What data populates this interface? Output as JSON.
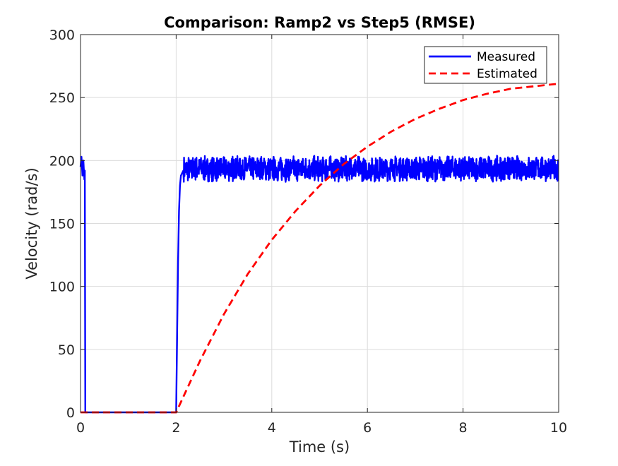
{
  "chart_data": {
    "type": "line",
    "title": "Comparison: Ramp2 vs Step5 (RMSE)",
    "xlabel": "Time (s)",
    "ylabel": "Velocity (rad/s)",
    "xlim": [
      0,
      10
    ],
    "ylim": [
      0,
      300
    ],
    "xticks": [
      0,
      2,
      4,
      6,
      8,
      10
    ],
    "yticks": [
      0,
      50,
      100,
      150,
      200,
      250,
      300
    ],
    "xtick_labels": [
      "0",
      "2",
      "4",
      "6",
      "8",
      "10"
    ],
    "ytick_labels": [
      "0",
      "50",
      "100",
      "150",
      "200",
      "250",
      "300"
    ],
    "grid": true,
    "legend_position": "top-right",
    "series": [
      {
        "name": "Measured",
        "color": "#0000ff",
        "line_style": "solid",
        "noise_band": [
          183,
          204
        ],
        "x": [
          0,
          0.02,
          0.04,
          0.06,
          0.08,
          0.09,
          0.1,
          0.11,
          1.98,
          2.0,
          2.02,
          2.04,
          2.06,
          2.08,
          2.1,
          2.15,
          3,
          4,
          5,
          6,
          7,
          8,
          9,
          10
        ],
        "y": [
          195,
          203,
          188,
          200,
          185,
          192,
          0,
          0,
          0,
          0,
          60,
          120,
          160,
          180,
          188,
          192,
          193,
          193,
          193,
          193,
          193,
          193,
          193,
          193
        ]
      },
      {
        "name": "Estimated",
        "color": "#ff0000",
        "line_style": "dashed",
        "x": [
          0,
          2,
          2.5,
          3,
          3.5,
          4,
          4.5,
          5,
          5.5,
          6,
          6.5,
          7,
          7.5,
          8,
          8.5,
          9,
          9.5,
          10
        ],
        "y": [
          0,
          0,
          41,
          78,
          110,
          137,
          160,
          180,
          197,
          211,
          223,
          233,
          241,
          248,
          253,
          257,
          259,
          261
        ]
      }
    ]
  }
}
